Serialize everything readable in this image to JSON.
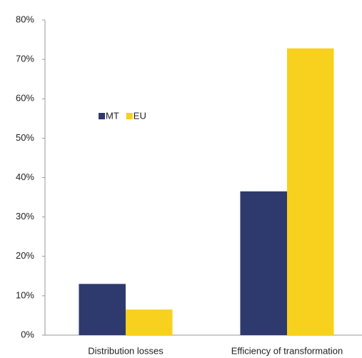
{
  "chart_data": {
    "type": "bar",
    "categories": [
      "Distribution losses",
      "Efficiency of transformation"
    ],
    "series": [
      {
        "name": "MT",
        "color": "#2e3a6e",
        "values": [
          13,
          36.5
        ]
      },
      {
        "name": "EU",
        "color": "#f8d01e",
        "values": [
          6.5,
          72.8
        ]
      }
    ],
    "ylim": [
      0,
      80
    ],
    "yticks": [
      {
        "value": 0,
        "label": "0%"
      },
      {
        "value": 10,
        "label": "10%"
      },
      {
        "value": 20,
        "label": "20%"
      },
      {
        "value": 30,
        "label": "30%"
      },
      {
        "value": 40,
        "label": "40%"
      },
      {
        "value": 50,
        "label": "50%"
      },
      {
        "value": 60,
        "label": "60%"
      },
      {
        "value": 70,
        "label": "70%"
      },
      {
        "value": 80,
        "label": "80%"
      }
    ],
    "grid": false
  }
}
